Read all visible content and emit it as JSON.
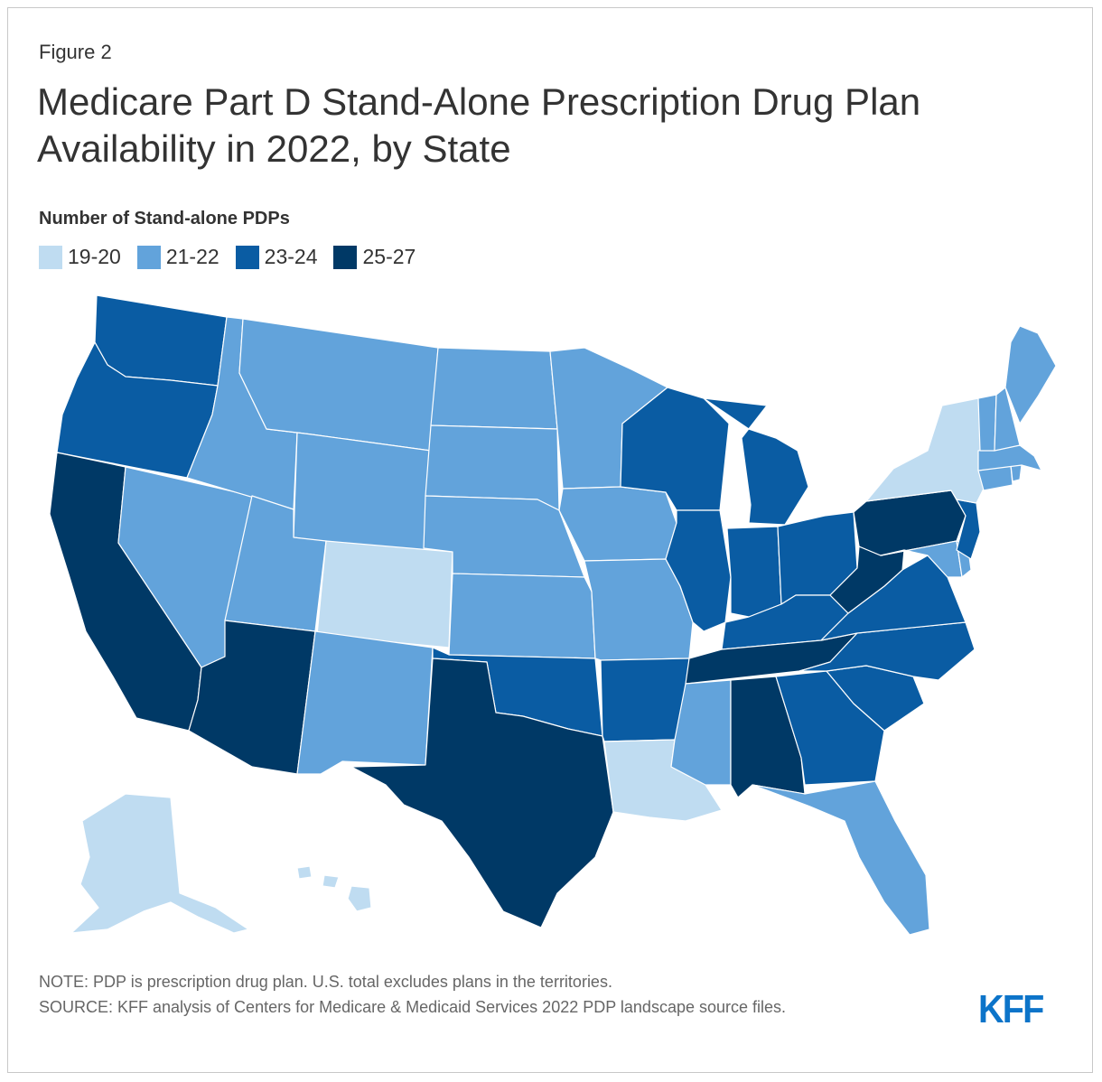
{
  "figure_label": "Figure 2",
  "title": "Medicare Part D Stand-Alone Prescription Drug Plan Availability in 2022, by State",
  "legend": {
    "title": "Number of Stand-alone PDPs",
    "items": [
      {
        "label": "19-20",
        "color": "#bfdcf1"
      },
      {
        "label": "21-22",
        "color": "#62a3db"
      },
      {
        "label": "23-24",
        "color": "#0a5ca3"
      },
      {
        "label": "25-27",
        "color": "#003966"
      }
    ]
  },
  "map_data": {
    "type": "choropleth",
    "region": "United States",
    "states": [
      {
        "state": "WA",
        "bin": "23-24"
      },
      {
        "state": "OR",
        "bin": "23-24"
      },
      {
        "state": "CA",
        "bin": "25-27"
      },
      {
        "state": "NV",
        "bin": "21-22"
      },
      {
        "state": "ID",
        "bin": "21-22"
      },
      {
        "state": "MT",
        "bin": "21-22"
      },
      {
        "state": "WY",
        "bin": "21-22"
      },
      {
        "state": "UT",
        "bin": "21-22"
      },
      {
        "state": "AZ",
        "bin": "25-27"
      },
      {
        "state": "CO",
        "bin": "19-20"
      },
      {
        "state": "NM",
        "bin": "21-22"
      },
      {
        "state": "ND",
        "bin": "21-22"
      },
      {
        "state": "SD",
        "bin": "21-22"
      },
      {
        "state": "NE",
        "bin": "21-22"
      },
      {
        "state": "KS",
        "bin": "21-22"
      },
      {
        "state": "OK",
        "bin": "23-24"
      },
      {
        "state": "TX",
        "bin": "25-27"
      },
      {
        "state": "MN",
        "bin": "21-22"
      },
      {
        "state": "IA",
        "bin": "21-22"
      },
      {
        "state": "MO",
        "bin": "21-22"
      },
      {
        "state": "AR",
        "bin": "23-24"
      },
      {
        "state": "LA",
        "bin": "19-20"
      },
      {
        "state": "WI",
        "bin": "23-24"
      },
      {
        "state": "IL",
        "bin": "23-24"
      },
      {
        "state": "MI",
        "bin": "23-24"
      },
      {
        "state": "IN",
        "bin": "23-24"
      },
      {
        "state": "OH",
        "bin": "23-24"
      },
      {
        "state": "KY",
        "bin": "23-24"
      },
      {
        "state": "TN",
        "bin": "25-27"
      },
      {
        "state": "MS",
        "bin": "21-22"
      },
      {
        "state": "AL",
        "bin": "25-27"
      },
      {
        "state": "GA",
        "bin": "23-24"
      },
      {
        "state": "FL",
        "bin": "21-22"
      },
      {
        "state": "SC",
        "bin": "23-24"
      },
      {
        "state": "NC",
        "bin": "23-24"
      },
      {
        "state": "VA",
        "bin": "23-24"
      },
      {
        "state": "WV",
        "bin": "25-27"
      },
      {
        "state": "PA",
        "bin": "25-27"
      },
      {
        "state": "NY",
        "bin": "19-20"
      },
      {
        "state": "NJ",
        "bin": "23-24"
      },
      {
        "state": "DE",
        "bin": "21-22"
      },
      {
        "state": "MD",
        "bin": "21-22"
      },
      {
        "state": "CT",
        "bin": "21-22"
      },
      {
        "state": "RI",
        "bin": "21-22"
      },
      {
        "state": "MA",
        "bin": "21-22"
      },
      {
        "state": "VT",
        "bin": "21-22"
      },
      {
        "state": "NH",
        "bin": "21-22"
      },
      {
        "state": "ME",
        "bin": "21-22"
      },
      {
        "state": "AK",
        "bin": "19-20"
      },
      {
        "state": "HI",
        "bin": "19-20"
      }
    ]
  },
  "note": "NOTE: PDP is prescription drug plan. U.S. total excludes plans in the territories.",
  "source": "SOURCE: KFF analysis of Centers for Medicare & Medicaid Services 2022 PDP landscape source files.",
  "logo_text": "KFF"
}
